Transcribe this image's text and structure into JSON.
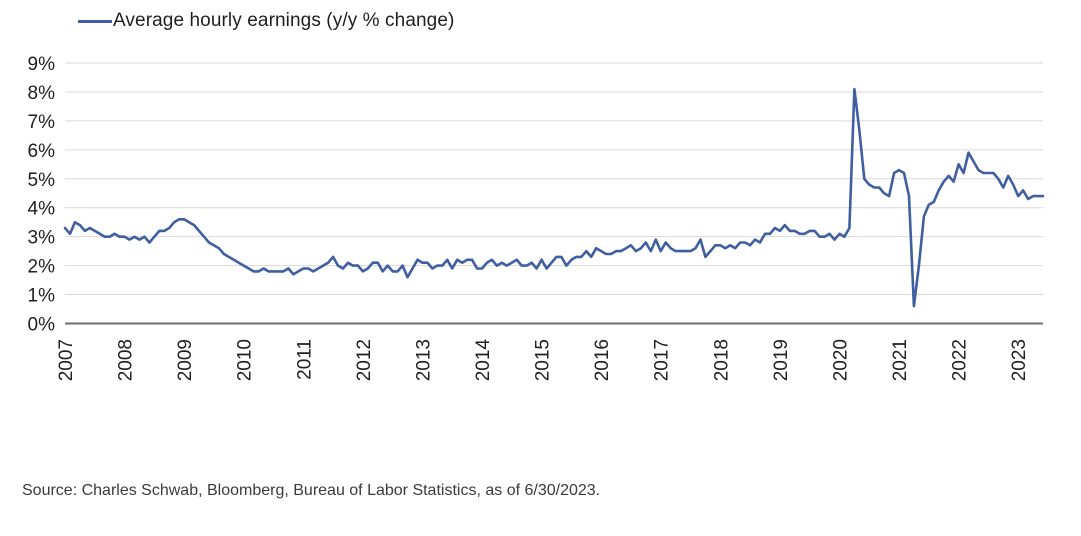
{
  "page": {
    "background_color": "#ffffff"
  },
  "legend": {
    "label": "Average hourly earnings (y/y % change)",
    "swatch_color": "#3f5fa0"
  },
  "source_note": "Source: Charles Schwab, Bloomberg, Bureau of Labor Statistics, as of 6/30/2023.",
  "chart_data": {
    "type": "line",
    "title": "",
    "xlabel": "",
    "ylabel": "",
    "ylim": [
      0,
      9
    ],
    "grid": "horizontal",
    "legend_position": "top-left",
    "colors": {
      "line": "#3f5fa0",
      "gridline": "#d9d9d9",
      "axis_line": "#6e6e6e",
      "tick_text": "#1f1f1f"
    },
    "y_tick_labels": [
      "0%",
      "1%",
      "2%",
      "3%",
      "4%",
      "5%",
      "6%",
      "7%",
      "8%",
      "9%"
    ],
    "x_tick_labels": [
      "2007",
      "2008",
      "2009",
      "2010",
      "2011",
      "2012",
      "2013",
      "2014",
      "2015",
      "2016",
      "2017",
      "2018",
      "2019",
      "2020",
      "2021",
      "2022",
      "2023"
    ],
    "x_start": "2007-01",
    "x_end": "2023-06",
    "x_frequency": "monthly",
    "series": [
      {
        "name": "Average hourly earnings (y/y % change)",
        "values": [
          3.3,
          3.1,
          3.5,
          3.4,
          3.2,
          3.3,
          3.2,
          3.1,
          3.0,
          3.0,
          3.1,
          3.0,
          3.0,
          2.9,
          3.0,
          2.9,
          3.0,
          2.8,
          3.0,
          3.2,
          3.2,
          3.3,
          3.5,
          3.6,
          3.6,
          3.5,
          3.4,
          3.2,
          3.0,
          2.8,
          2.7,
          2.6,
          2.4,
          2.3,
          2.2,
          2.1,
          2.0,
          1.9,
          1.8,
          1.8,
          1.9,
          1.8,
          1.8,
          1.8,
          1.8,
          1.9,
          1.7,
          1.8,
          1.9,
          1.9,
          1.8,
          1.9,
          2.0,
          2.1,
          2.3,
          2.0,
          1.9,
          2.1,
          2.0,
          2.0,
          1.8,
          1.9,
          2.1,
          2.1,
          1.8,
          2.0,
          1.8,
          1.8,
          2.0,
          1.6,
          1.9,
          2.2,
          2.1,
          2.1,
          1.9,
          2.0,
          2.0,
          2.2,
          1.9,
          2.2,
          2.1,
          2.2,
          2.2,
          1.9,
          1.9,
          2.1,
          2.2,
          2.0,
          2.1,
          2.0,
          2.1,
          2.2,
          2.0,
          2.0,
          2.1,
          1.9,
          2.2,
          1.9,
          2.1,
          2.3,
          2.3,
          2.0,
          2.2,
          2.3,
          2.3,
          2.5,
          2.3,
          2.6,
          2.5,
          2.4,
          2.4,
          2.5,
          2.5,
          2.6,
          2.7,
          2.5,
          2.6,
          2.8,
          2.5,
          2.9,
          2.5,
          2.8,
          2.6,
          2.5,
          2.5,
          2.5,
          2.5,
          2.6,
          2.9,
          2.3,
          2.5,
          2.7,
          2.7,
          2.6,
          2.7,
          2.6,
          2.8,
          2.8,
          2.7,
          2.9,
          2.8,
          3.1,
          3.1,
          3.3,
          3.2,
          3.4,
          3.2,
          3.2,
          3.1,
          3.1,
          3.2,
          3.2,
          3.0,
          3.0,
          3.1,
          2.9,
          3.1,
          3.0,
          3.3,
          8.1,
          6.7,
          5.0,
          4.8,
          4.7,
          4.7,
          4.5,
          4.4,
          5.2,
          5.3,
          5.2,
          4.4,
          0.6,
          2.0,
          3.7,
          4.1,
          4.2,
          4.6,
          4.9,
          5.1,
          4.9,
          5.5,
          5.2,
          5.9,
          5.6,
          5.3,
          5.2,
          5.2,
          5.2,
          5.0,
          4.7,
          5.1,
          4.8,
          4.4,
          4.6,
          4.3,
          4.4,
          4.4,
          4.4
        ]
      }
    ]
  }
}
